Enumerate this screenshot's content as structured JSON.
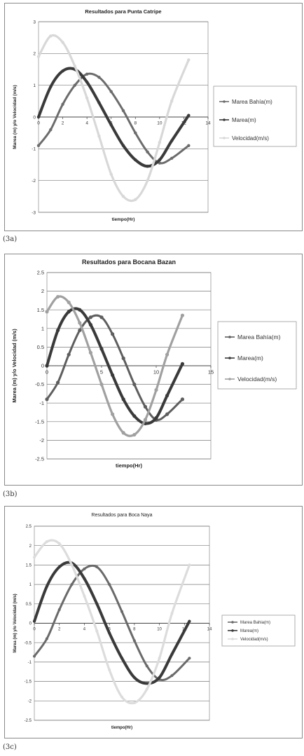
{
  "figures": [
    {
      "caption": "(3a)"
    },
    {
      "caption": "(3b)"
    },
    {
      "caption": "(3c)"
    }
  ],
  "chart_data": [
    {
      "type": "line",
      "title": "Resultados para Punta Catripe",
      "xlabel": "tiempo(Hr)",
      "ylabel": "Marea (m) y/o Velocidad (m/s)",
      "xlim": [
        0,
        14
      ],
      "ylim": [
        -3,
        3
      ],
      "x_ticks": [
        "0",
        "2",
        "4",
        "6",
        "8",
        "10",
        "12",
        "14"
      ],
      "y_ticks": [
        "3",
        "2",
        "1",
        "0",
        "-1",
        "-2",
        "-3"
      ],
      "grid": "horizontal",
      "legend": "right",
      "series": [
        {
          "name": "Marea Bahía(m)",
          "color": "#6c6c6c",
          "x": [
            0,
            1,
            2,
            3,
            4,
            5,
            6,
            7,
            8,
            9,
            10,
            11,
            12.4
          ],
          "y": [
            -0.9,
            -0.4,
            0.4,
            1.0,
            1.35,
            1.25,
            0.8,
            0.2,
            -0.5,
            -1.1,
            -1.45,
            -1.3,
            -0.9
          ]
        },
        {
          "name": "Marea(m)",
          "color": "#3a3a3a",
          "x": [
            0,
            1,
            2,
            3,
            4,
            5,
            6,
            7,
            8,
            9,
            10,
            11,
            12.4
          ],
          "y": [
            0,
            0.95,
            1.45,
            1.5,
            1.1,
            0.45,
            -0.25,
            -0.9,
            -1.35,
            -1.55,
            -1.35,
            -0.75,
            0.05
          ]
        },
        {
          "name": "Velocidad(m/s)",
          "color": "#d8d8d8",
          "x": [
            0,
            1,
            2,
            3,
            4,
            5,
            6,
            7,
            8,
            9,
            10,
            11,
            12.4
          ],
          "y": [
            1.9,
            2.55,
            2.35,
            1.6,
            0.6,
            -0.6,
            -1.8,
            -2.5,
            -2.6,
            -2.0,
            -0.8,
            0.5,
            1.8
          ]
        }
      ]
    },
    {
      "type": "line",
      "title": "Resultados para Bocana Bazan",
      "xlabel": "tiempo(Hr)",
      "ylabel": "Marea (m) y/o Velocidad (m/s)",
      "xlim": [
        0,
        15
      ],
      "ylim": [
        -2.5,
        2.5
      ],
      "x_ticks": [
        "0",
        "5",
        "10",
        "15"
      ],
      "y_ticks": [
        "2.5",
        "2",
        "1.5",
        "1",
        "0.5",
        "0",
        "-0.5",
        "-1",
        "-1.5",
        "-2",
        "-2.5"
      ],
      "grid": "horizontal",
      "legend": "right",
      "series": [
        {
          "name": "Marea Bahía(m)",
          "color": "#5e5e5e",
          "x": [
            0,
            1,
            2,
            3,
            4,
            5,
            6,
            7,
            8,
            9,
            10,
            11,
            12.4
          ],
          "y": [
            -0.9,
            -0.45,
            0.3,
            0.95,
            1.3,
            1.3,
            0.85,
            0.2,
            -0.5,
            -1.1,
            -1.45,
            -1.3,
            -0.9
          ]
        },
        {
          "name": "Marea(m)",
          "color": "#3a3a3a",
          "x": [
            0,
            1,
            2,
            3,
            4,
            5,
            6,
            7,
            8,
            9,
            10,
            11,
            12.4
          ],
          "y": [
            0,
            0.95,
            1.45,
            1.5,
            1.1,
            0.45,
            -0.25,
            -0.9,
            -1.35,
            -1.55,
            -1.4,
            -0.8,
            0.05
          ]
        },
        {
          "name": "Velocidad(m/s)",
          "color": "#a0a0a0",
          "x": [
            0,
            1,
            2,
            3,
            4,
            5,
            6,
            7,
            8,
            9,
            10,
            11,
            12.4
          ],
          "y": [
            1.45,
            1.85,
            1.7,
            1.15,
            0.35,
            -0.5,
            -1.3,
            -1.8,
            -1.85,
            -1.45,
            -0.65,
            0.3,
            1.35
          ]
        }
      ]
    },
    {
      "type": "line",
      "title": "Resultados para Boca Naya",
      "xlabel": "tiempo(Hr)",
      "ylabel": "Marea (m) y/o Velocidad (m/s)",
      "xlim": [
        0,
        14
      ],
      "ylim": [
        -2.5,
        2.5
      ],
      "x_ticks": [
        "0",
        "2",
        "4",
        "6",
        "8",
        "10",
        "12",
        "14"
      ],
      "y_ticks": [
        "2.5",
        "2",
        "1.5",
        "1",
        "0.5",
        "0",
        "-0.5",
        "-1",
        "-1.5",
        "-2",
        "-2.5"
      ],
      "grid": "horizontal",
      "legend": "right",
      "series": [
        {
          "name": "Marea Bahia(m)",
          "color": "#6a6a6a",
          "x": [
            0,
            1,
            2,
            3,
            4,
            5,
            6,
            7,
            8,
            9,
            10,
            11,
            12.4
          ],
          "y": [
            -0.85,
            -0.4,
            0.35,
            1.0,
            1.4,
            1.45,
            1.0,
            0.3,
            -0.45,
            -1.1,
            -1.45,
            -1.35,
            -0.9
          ]
        },
        {
          "name": "Marea(m)",
          "color": "#3a3a3a",
          "x": [
            0,
            1,
            2,
            3,
            4,
            5,
            6,
            7,
            8,
            9,
            10,
            11,
            12.4
          ],
          "y": [
            0.05,
            0.95,
            1.45,
            1.55,
            1.15,
            0.5,
            -0.25,
            -0.9,
            -1.4,
            -1.55,
            -1.4,
            -0.8,
            0.05
          ]
        },
        {
          "name": "Velocidad(m/s)",
          "color": "#dcdcdc",
          "x": [
            0,
            1,
            2,
            3,
            4,
            5,
            6,
            7,
            8,
            9,
            10,
            11,
            12.4
          ],
          "y": [
            1.7,
            2.1,
            2.05,
            1.5,
            0.7,
            -0.2,
            -1.2,
            -1.9,
            -2.05,
            -1.7,
            -0.9,
            0.25,
            1.5
          ]
        }
      ]
    }
  ]
}
